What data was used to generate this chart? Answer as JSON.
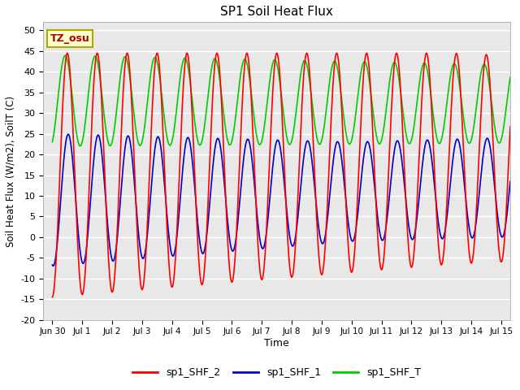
{
  "title": "SP1 Soil Heat Flux",
  "xlabel": "Time",
  "ylabel": "Soil Heat Flux (W/m2), SoilT (C)",
  "ylim": [
    -20,
    52
  ],
  "yticks": [
    -20,
    -15,
    -10,
    -5,
    0,
    5,
    10,
    15,
    20,
    25,
    30,
    35,
    40,
    45,
    50
  ],
  "bg_color": "#e8e8e8",
  "fig_color": "#ffffff",
  "line_colors": {
    "shf2": "#ff0000",
    "shf1": "#0000cc",
    "shft": "#00cc00"
  },
  "line_width": 1.2,
  "legend_labels": [
    "sp1_SHF_2",
    "sp1_SHF_1",
    "sp1_SHF_T"
  ],
  "tz_label": "TZ_osu",
  "tz_box_color": "#ffffcc",
  "tz_text_color": "#aa0000",
  "tz_border_color": "#aaaa00",
  "xmin": -0.3,
  "xmax": 15.3,
  "xtick_pos": [
    0,
    1,
    2,
    3,
    4,
    5,
    6,
    7,
    8,
    9,
    10,
    11,
    12,
    13,
    14,
    15
  ],
  "xtick_labels": [
    "Jun 30",
    "Jul 1",
    "Jul 2",
    "Jul 3",
    "Jul 4",
    "Jul 5",
    "Jul 6",
    "Jul 7",
    "Jul 8",
    "Jul 9",
    "Jul 10",
    "Jul 11",
    "Jul 12",
    "Jul 13",
    "Jul 14",
    "Jul 15"
  ]
}
